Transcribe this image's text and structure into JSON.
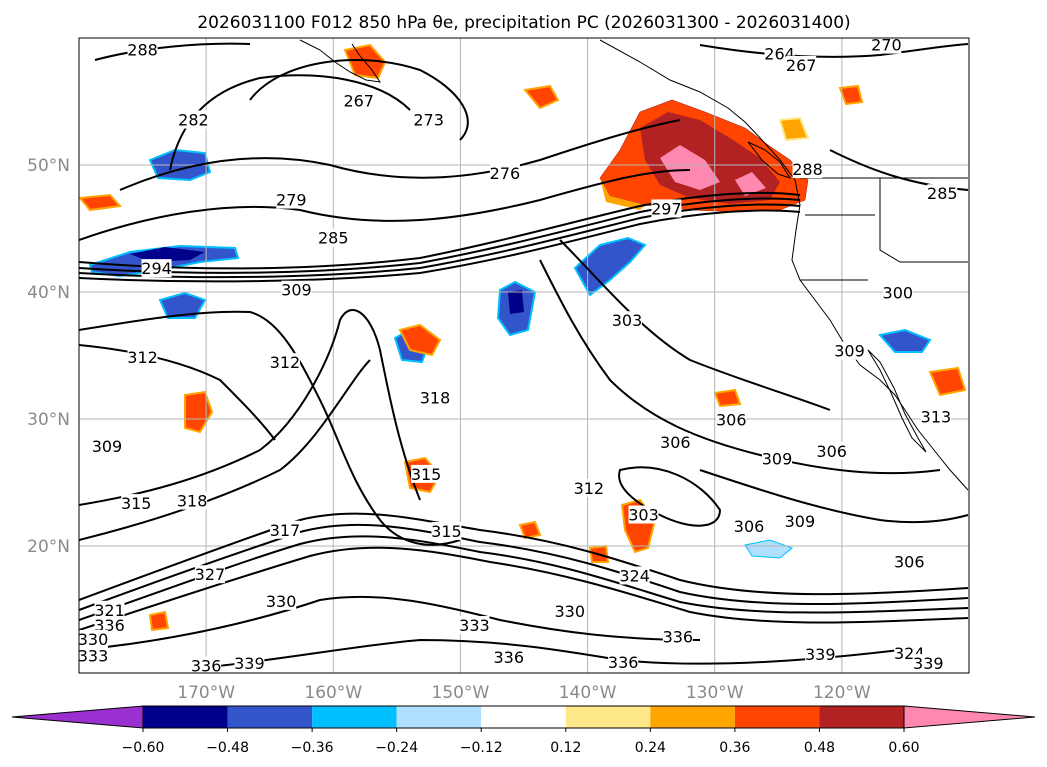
{
  "title": "2026031100 F012 850 hPa θe, precipitation PC (2026031300 - 2026031400)",
  "map": {
    "lon_range": [
      -180,
      -110
    ],
    "lat_range": [
      10,
      60
    ],
    "lon_ticks": [
      {
        "lon": -170,
        "label": "170°W"
      },
      {
        "lon": -160,
        "label": "160°W"
      },
      {
        "lon": -150,
        "label": "150°W"
      },
      {
        "lon": -140,
        "label": "140°W"
      },
      {
        "lon": -130,
        "label": "130°W"
      },
      {
        "lon": -120,
        "label": "120°W"
      }
    ],
    "lat_ticks": [
      {
        "lat": 50,
        "label": "50°N"
      },
      {
        "lat": 40,
        "label": "40°N"
      },
      {
        "lat": 30,
        "label": "30°N"
      },
      {
        "lat": 20,
        "label": "20°N"
      }
    ],
    "grid": true,
    "contour_labels": [
      {
        "text": "288",
        "lon": -175.0,
        "lat": 59.0
      },
      {
        "text": "267",
        "lon": -158.0,
        "lat": 55.0
      },
      {
        "text": "273",
        "lon": -152.5,
        "lat": 53.5
      },
      {
        "text": "282",
        "lon": -171.0,
        "lat": 53.5
      },
      {
        "text": "276",
        "lon": -146.5,
        "lat": 49.3
      },
      {
        "text": "279",
        "lon": -163.3,
        "lat": 47.2
      },
      {
        "text": "285",
        "lon": -160.0,
        "lat": 44.2
      },
      {
        "text": "294",
        "lon": -173.9,
        "lat": 41.8
      },
      {
        "text": "309",
        "lon": -162.9,
        "lat": 40.1
      },
      {
        "text": "264",
        "lon": -124.9,
        "lat": 58.7
      },
      {
        "text": "267",
        "lon": -123.2,
        "lat": 57.8
      },
      {
        "text": "270",
        "lon": -116.5,
        "lat": 59.4
      },
      {
        "text": "288",
        "lon": -122.7,
        "lat": 49.6
      },
      {
        "text": "285",
        "lon": -112.1,
        "lat": 47.7
      },
      {
        "text": "297",
        "lon": -133.8,
        "lat": 46.5
      },
      {
        "text": "300",
        "lon": -115.6,
        "lat": 39.9
      },
      {
        "text": "303",
        "lon": -136.9,
        "lat": 37.7
      },
      {
        "text": "309",
        "lon": -119.4,
        "lat": 35.3
      },
      {
        "text": "312",
        "lon": -175.0,
        "lat": 34.8
      },
      {
        "text": "312",
        "lon": -163.8,
        "lat": 34.4
      },
      {
        "text": "318",
        "lon": -152.0,
        "lat": 31.6
      },
      {
        "text": "309",
        "lon": -177.8,
        "lat": 27.8
      },
      {
        "text": "306",
        "lon": -128.7,
        "lat": 29.9
      },
      {
        "text": "306",
        "lon": -133.1,
        "lat": 28.1
      },
      {
        "text": "309",
        "lon": -125.1,
        "lat": 26.8
      },
      {
        "text": "306",
        "lon": -120.8,
        "lat": 27.4
      },
      {
        "text": "313",
        "lon": -112.6,
        "lat": 30.1
      },
      {
        "text": "315",
        "lon": -152.7,
        "lat": 25.6
      },
      {
        "text": "315",
        "lon": -175.5,
        "lat": 23.3
      },
      {
        "text": "318",
        "lon": -171.1,
        "lat": 23.5
      },
      {
        "text": "312",
        "lon": -139.9,
        "lat": 24.5
      },
      {
        "text": "303",
        "lon": -135.6,
        "lat": 22.4
      },
      {
        "text": "306",
        "lon": -127.3,
        "lat": 21.5
      },
      {
        "text": "309",
        "lon": -123.3,
        "lat": 21.9
      },
      {
        "text": "317",
        "lon": -163.8,
        "lat": 21.2
      },
      {
        "text": "315",
        "lon": -151.1,
        "lat": 21.1
      },
      {
        "text": "306",
        "lon": -114.7,
        "lat": 18.7
      },
      {
        "text": "327",
        "lon": -169.7,
        "lat": 17.7
      },
      {
        "text": "324",
        "lon": -136.3,
        "lat": 17.6
      },
      {
        "text": "330",
        "lon": -164.1,
        "lat": 15.6
      },
      {
        "text": "321",
        "lon": -177.6,
        "lat": 14.9
      },
      {
        "text": "330",
        "lon": -141.4,
        "lat": 14.8
      },
      {
        "text": "336",
        "lon": -177.6,
        "lat": 13.7
      },
      {
        "text": "330",
        "lon": -178.9,
        "lat": 12.6
      },
      {
        "text": "333",
        "lon": -148.9,
        "lat": 13.7
      },
      {
        "text": "336",
        "lon": -146.2,
        "lat": 11.2
      },
      {
        "text": "336",
        "lon": -132.9,
        "lat": 12.8
      },
      {
        "text": "333",
        "lon": -178.9,
        "lat": 11.3
      },
      {
        "text": "336",
        "lon": -170.0,
        "lat": 10.5
      },
      {
        "text": "339",
        "lon": -166.6,
        "lat": 10.7
      },
      {
        "text": "336",
        "lon": -137.2,
        "lat": 10.8
      },
      {
        "text": "339",
        "lon": -121.7,
        "lat": 11.4
      },
      {
        "text": "324",
        "lon": -114.7,
        "lat": 11.5
      },
      {
        "text": "339",
        "lon": -113.2,
        "lat": 10.7
      }
    ]
  },
  "colorbar": {
    "ticks": [
      "−0.60",
      "−0.48",
      "−0.36",
      "−0.24",
      "−0.12",
      "0.12",
      "0.24",
      "0.36",
      "0.48",
      "0.60"
    ],
    "under_color": "#9b30d0",
    "over_color": "#ff88b0",
    "colors": [
      "#00008b",
      "#3355cc",
      "#00bfff",
      "#b0e0ff",
      "#ffffff",
      "#ffe88a",
      "#ffa500",
      "#ff4500",
      "#b22222"
    ]
  }
}
